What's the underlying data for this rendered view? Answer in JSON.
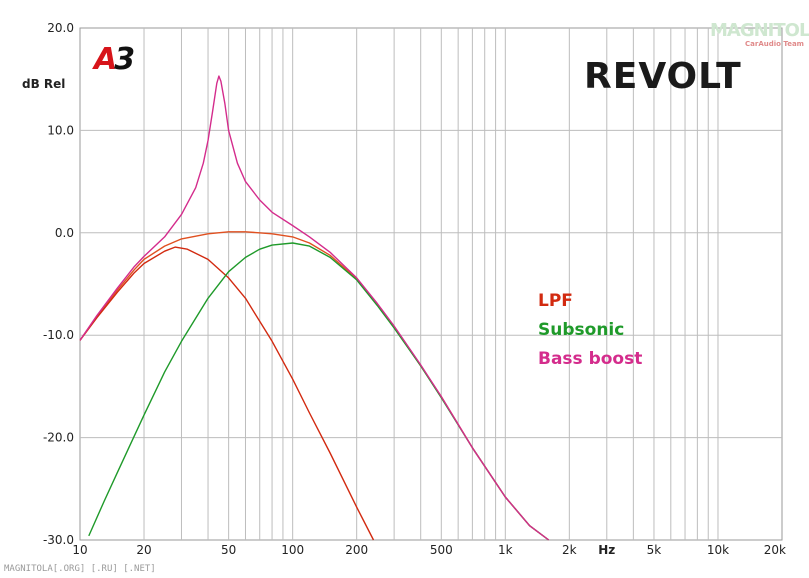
{
  "brand": "REVOLT",
  "logo_text": {
    "letter": "A",
    "digit": "3"
  },
  "watermark": {
    "main": "MAGNITOLA",
    "sub": "CarAudio Team"
  },
  "footer": "MAGNITOLA[.ORG] [.RU] [.NET]",
  "colors": {
    "lpf": "#d22a10",
    "subsonic": "#1f9a2a",
    "bass_boost": "#d42c8c",
    "flat": "#e05020",
    "grid": "#b8b8b8"
  },
  "chart_data": {
    "type": "line",
    "ylabel": "dB Rel",
    "xscale": "log",
    "xlim": [
      10,
      20000
    ],
    "ylim": [
      -30,
      20
    ],
    "grid": true,
    "legend_position": "center-right",
    "y_ticks": [
      "20.0",
      "10.0",
      "0.0",
      "-10.0",
      "-20.0",
      "-30.0"
    ],
    "y_tick_values": [
      20,
      10,
      0,
      -10,
      -20,
      -30
    ],
    "x_ticks": [
      "10",
      "20",
      "50",
      "100",
      "200",
      "500",
      "1k",
      "2k",
      "Hz",
      "5k",
      "10k",
      "20k"
    ],
    "x_tick_values": [
      10,
      20,
      50,
      100,
      200,
      500,
      1000,
      2000,
      3000,
      5000,
      10000,
      20000
    ],
    "legend": [
      {
        "label": "LPF",
        "color": "#d22a10"
      },
      {
        "label": "Subsonic",
        "color": "#1f9a2a"
      },
      {
        "label": "Bass boost",
        "color": "#d42c8c"
      }
    ],
    "series": [
      {
        "key": "flat",
        "color": "#e05020",
        "x": [
          10,
          12,
          15,
          18,
          20,
          25,
          30,
          40,
          50,
          60,
          80,
          100,
          120,
          150,
          200,
          250,
          300,
          400,
          500,
          700,
          1000,
          1300,
          1600
        ],
        "y": [
          -10.5,
          -8.2,
          -5.6,
          -3.6,
          -2.6,
          -1.3,
          -0.6,
          -0.1,
          0.1,
          0.1,
          -0.1,
          -0.4,
          -1.0,
          -2.2,
          -4.5,
          -7.0,
          -9.2,
          -13.0,
          -16.0,
          -21.0,
          -25.8,
          -28.6,
          -30.0
        ]
      },
      {
        "key": "lpf",
        "color": "#d22a10",
        "x": [
          10,
          12,
          15,
          18,
          20,
          25,
          28,
          32,
          40,
          50,
          60,
          80,
          100,
          120,
          150,
          200,
          240
        ],
        "y": [
          -10.5,
          -8.3,
          -5.8,
          -3.9,
          -3.0,
          -1.8,
          -1.4,
          -1.6,
          -2.6,
          -4.4,
          -6.4,
          -10.6,
          -14.3,
          -17.6,
          -21.5,
          -26.8,
          -30.0
        ]
      },
      {
        "key": "subsonic",
        "color": "#1f9a2a",
        "x": [
          11,
          13,
          15,
          20,
          25,
          30,
          40,
          50,
          60,
          70,
          80,
          100,
          120,
          150,
          200,
          250,
          300,
          400,
          500,
          700,
          1000,
          1300,
          1600
        ],
        "y": [
          -29.6,
          -26.2,
          -23.4,
          -17.8,
          -13.6,
          -10.6,
          -6.4,
          -3.8,
          -2.4,
          -1.6,
          -1.2,
          -1.0,
          -1.3,
          -2.4,
          -4.6,
          -7.1,
          -9.3,
          -13.0,
          -16.1,
          -21.0,
          -25.8,
          -28.6,
          -30.0
        ]
      },
      {
        "key": "bass_boost",
        "color": "#d42c8c",
        "x": [
          10,
          12,
          15,
          18,
          20,
          25,
          30,
          35,
          38,
          40,
          42,
          44,
          45,
          46,
          48,
          50,
          55,
          60,
          70,
          80,
          100,
          120,
          150,
          200,
          250,
          300,
          400,
          500,
          700,
          1000,
          1300,
          1600
        ],
        "y": [
          -10.5,
          -8.1,
          -5.4,
          -3.3,
          -2.3,
          -0.4,
          1.8,
          4.4,
          6.8,
          9.0,
          11.8,
          14.6,
          15.3,
          14.8,
          12.6,
          10.0,
          6.8,
          5.0,
          3.2,
          2.0,
          0.7,
          -0.4,
          -1.9,
          -4.4,
          -6.9,
          -9.1,
          -12.9,
          -16.0,
          -21.0,
          -25.8,
          -28.6,
          -30.0
        ]
      }
    ]
  }
}
